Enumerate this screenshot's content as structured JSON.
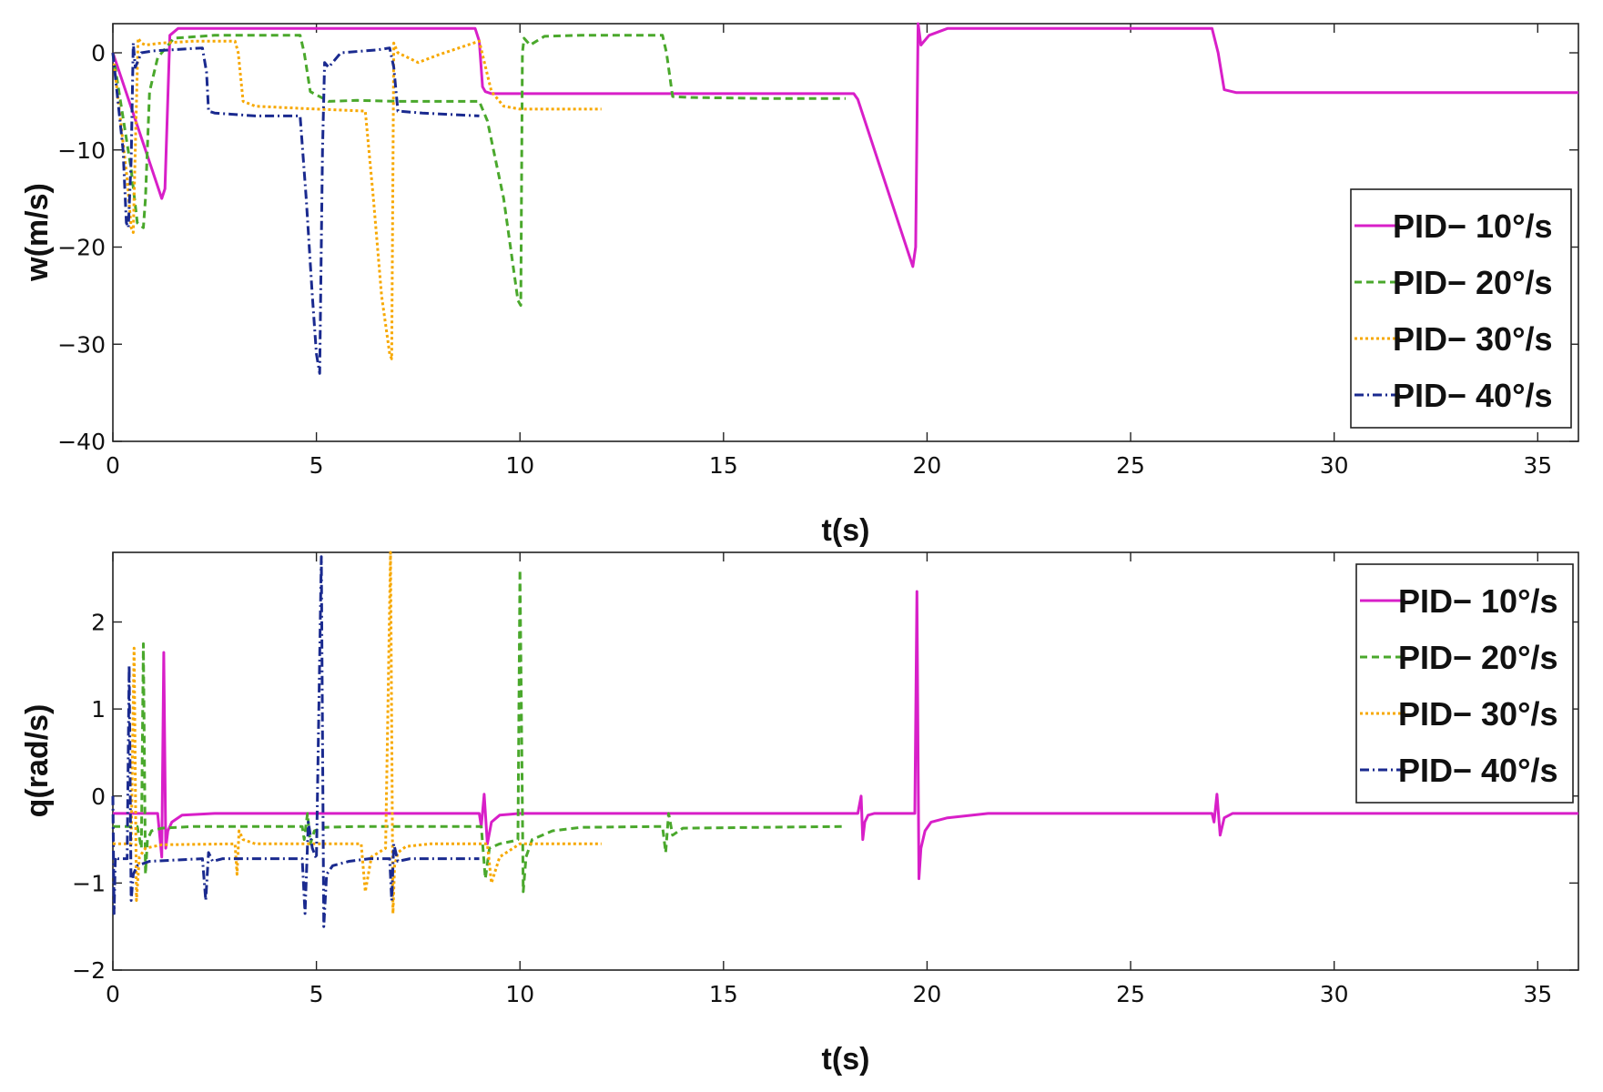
{
  "colors": {
    "pid10": "#d81fc8",
    "pid20": "#4aa82c",
    "pid30": "#f7a800",
    "pid40": "#1a2a8f"
  },
  "chart_data": [
    {
      "type": "line",
      "title": "",
      "xlabel": "t(s)",
      "ylabel": "w(m/s)",
      "xlim": [
        0,
        36
      ],
      "ylim": [
        -40,
        3
      ],
      "xticks": [
        0,
        5,
        10,
        15,
        20,
        25,
        30,
        35
      ],
      "xtick_labels": [
        "0",
        "5",
        "10",
        "15",
        "20",
        "25",
        "30",
        "35"
      ],
      "yticks": [
        0,
        -10,
        -20,
        -30,
        -40
      ],
      "ytick_labels": [
        "0",
        "−10",
        "−20",
        "−30",
        "−40"
      ],
      "legend_position": "right",
      "series": [
        {
          "name": "PID− 10°/s",
          "color_key": "pid10",
          "dash": "solid",
          "x": [
            0,
            1.2,
            1.28,
            1.4,
            1.6,
            2.5,
            8.9,
            9.0,
            9.08,
            9.15,
            9.3,
            10,
            18.2,
            18.3,
            19.65,
            19.72,
            19.78,
            19.85,
            20.05,
            20.5,
            27.0,
            27.15,
            27.3,
            27.6,
            36
          ],
          "y": [
            0,
            -15,
            -14,
            1.8,
            2.5,
            2.5,
            2.5,
            1.2,
            -3.5,
            -4,
            -4.2,
            -4.2,
            -4.2,
            -4.8,
            -22,
            -20,
            3,
            0.8,
            1.8,
            2.5,
            2.5,
            0,
            -3.8,
            -4.1,
            -4.1
          ]
        },
        {
          "name": "PID− 20°/s",
          "color_key": "pid20",
          "dash": "8 5",
          "x": [
            0,
            0.45,
            0.6,
            0.75,
            0.8,
            0.9,
            1.1,
            1.5,
            2.5,
            4.6,
            4.7,
            4.85,
            5.3,
            6,
            7,
            9,
            9.2,
            9.6,
            9.95,
            10.02,
            10.06,
            10.1,
            10.25,
            10.6,
            11.5,
            13.5,
            13.6,
            13.75,
            14.2,
            16,
            18
          ],
          "y": [
            0,
            -12,
            -17.5,
            -18,
            -15,
            -4,
            -0.5,
            1.5,
            1.8,
            1.8,
            0,
            -4,
            -5,
            -4.9,
            -5,
            -5,
            -7,
            -15,
            -25.5,
            -26,
            0,
            1.5,
            0.8,
            1.7,
            1.8,
            1.8,
            0,
            -4.5,
            -4.6,
            -4.7,
            -4.7
          ]
        },
        {
          "name": "PID− 30°/s",
          "color_key": "pid30",
          "dash": "3 3",
          "x": [
            0,
            0.35,
            0.45,
            0.5,
            0.55,
            0.62,
            0.7,
            0.8,
            1.2,
            2.0,
            3.0,
            3.08,
            3.2,
            3.5,
            5,
            6.2,
            6.4,
            6.6,
            6.8,
            6.85,
            6.9,
            7.0,
            7.5,
            8,
            9,
            9.3,
            9.6,
            10,
            12
          ],
          "y": [
            0,
            -13,
            -18,
            -18.5,
            -10,
            1.5,
            1.0,
            0.8,
            1.0,
            1.2,
            1.2,
            0,
            -5,
            -5.5,
            -5.8,
            -6,
            -15,
            -25,
            -31,
            -31.5,
            1,
            0,
            -1,
            -0.2,
            1.2,
            -4,
            -5.5,
            -5.8,
            -5.8
          ]
        },
        {
          "name": "PID− 40°/s",
          "color_key": "pid40",
          "dash": "10 4 2 4",
          "x": [
            0,
            0.25,
            0.33,
            0.38,
            0.45,
            0.5,
            0.55,
            0.7,
            1.0,
            2.2,
            2.3,
            2.35,
            2.5,
            3.5,
            4.6,
            4.75,
            4.9,
            5.0,
            5.08,
            5.15,
            5.2,
            5.3,
            5.6,
            6.5,
            6.8,
            6.9,
            7.0,
            7.6,
            9
          ],
          "y": [
            0,
            -10,
            -17.5,
            -18,
            -11,
            1.0,
            -1.5,
            0,
            0.2,
            0.5,
            -2,
            -6,
            -6.2,
            -6.5,
            -6.5,
            -15,
            -25,
            -31,
            -33,
            -10,
            -1,
            -1.5,
            0,
            0.3,
            0.5,
            -1.5,
            -6,
            -6.2,
            -6.5
          ]
        }
      ]
    },
    {
      "type": "line",
      "title": "",
      "xlabel": "t(s)",
      "ylabel": "q(rad/s)",
      "xlim": [
        0,
        36
      ],
      "ylim": [
        -2,
        2.8
      ],
      "xticks": [
        0,
        5,
        10,
        15,
        20,
        25,
        30,
        35
      ],
      "xtick_labels": [
        "0",
        "5",
        "10",
        "15",
        "20",
        "25",
        "30",
        "35"
      ],
      "yticks": [
        2,
        1,
        0,
        -1,
        -2
      ],
      "ytick_labels": [
        "2",
        "1",
        "0",
        "−1",
        "−2"
      ],
      "legend_position": "top-right",
      "series": [
        {
          "name": "PID− 10°/s",
          "color_key": "pid10",
          "dash": "solid",
          "x": [
            0,
            0.3,
            1.1,
            1.2,
            1.25,
            1.3,
            1.35,
            1.45,
            1.7,
            2.5,
            9.0,
            9.05,
            9.12,
            9.2,
            9.3,
            9.5,
            10,
            18.3,
            18.38,
            18.42,
            18.47,
            18.55,
            18.7,
            19.7,
            19.75,
            19.8,
            19.85,
            19.95,
            20.1,
            20.5,
            21.5,
            27.0,
            27.05,
            27.12,
            27.2,
            27.3,
            27.5,
            36
          ],
          "y": [
            -0.2,
            -0.2,
            -0.2,
            -0.7,
            1.65,
            -0.6,
            -0.4,
            -0.3,
            -0.22,
            -0.2,
            -0.2,
            -0.35,
            0.02,
            -0.55,
            -0.3,
            -0.22,
            -0.2,
            -0.2,
            0.0,
            -0.5,
            -0.3,
            -0.22,
            -0.2,
            -0.2,
            2.35,
            -0.95,
            -0.6,
            -0.4,
            -0.3,
            -0.25,
            -0.2,
            -0.2,
            -0.3,
            0.02,
            -0.45,
            -0.25,
            -0.2,
            -0.2
          ]
        },
        {
          "name": "PID− 20°/s",
          "color_key": "pid20",
          "dash": "8 5",
          "x": [
            0,
            0.2,
            0.6,
            0.7,
            0.75,
            0.8,
            0.85,
            0.95,
            1.2,
            2.0,
            4.65,
            4.7,
            4.78,
            4.85,
            4.95,
            5.2,
            6,
            9.05,
            9.15,
            9.25,
            9.5,
            9.8,
            9.95,
            10.0,
            10.08,
            10.15,
            10.3,
            10.8,
            11.5,
            13.5,
            13.58,
            13.65,
            13.75,
            14.0,
            18
          ],
          "y": [
            -0.35,
            -0.35,
            -0.35,
            -0.6,
            1.75,
            -0.9,
            -0.5,
            -0.4,
            -0.37,
            -0.35,
            -0.35,
            -0.5,
            -0.2,
            -0.55,
            -0.4,
            -0.36,
            -0.35,
            -0.35,
            -0.95,
            -0.6,
            -0.55,
            -0.52,
            -0.5,
            2.6,
            -1.1,
            -0.7,
            -0.5,
            -0.4,
            -0.36,
            -0.35,
            -0.65,
            -0.2,
            -0.45,
            -0.37,
            -0.35
          ]
        },
        {
          "name": "PID− 30°/s",
          "color_key": "pid30",
          "dash": "3 3",
          "x": [
            0,
            0.2,
            0.45,
            0.52,
            0.58,
            0.65,
            0.8,
            1.2,
            3.0,
            3.05,
            3.1,
            3.2,
            3.5,
            5,
            6.1,
            6.2,
            6.35,
            6.7,
            6.82,
            6.88,
            6.92,
            7.0,
            7.2,
            7.8,
            9.2,
            9.3,
            9.5,
            10,
            12
          ],
          "y": [
            -0.55,
            -0.55,
            -0.55,
            1.7,
            -1.2,
            -0.7,
            -0.6,
            -0.56,
            -0.55,
            -0.9,
            -0.4,
            -0.5,
            -0.55,
            -0.55,
            -0.55,
            -1.1,
            -0.7,
            -0.6,
            2.8,
            -1.35,
            -0.8,
            -0.65,
            -0.58,
            -0.55,
            -0.55,
            -1.0,
            -0.7,
            -0.55,
            -0.55
          ]
        },
        {
          "name": "PID− 40°/s",
          "color_key": "pid40",
          "dash": "10 4 2 4",
          "x": [
            0,
            0.03,
            0.06,
            0.12,
            0.35,
            0.4,
            0.45,
            0.5,
            0.6,
            0.9,
            2.2,
            2.28,
            2.35,
            2.45,
            2.7,
            4.65,
            4.72,
            4.8,
            4.9,
            5.0,
            5.12,
            5.18,
            5.25,
            5.4,
            5.8,
            6.3,
            6.8,
            6.85,
            6.9,
            7.0,
            7.3,
            9
          ],
          "y": [
            0,
            -1.35,
            -0.7,
            -0.72,
            -0.72,
            1.5,
            -1.2,
            -0.9,
            -0.8,
            -0.75,
            -0.72,
            -1.2,
            -0.65,
            -0.75,
            -0.72,
            -0.72,
            -1.35,
            -0.3,
            -0.6,
            -0.72,
            2.75,
            -1.5,
            -0.9,
            -0.8,
            -0.75,
            -0.72,
            -0.72,
            -1.2,
            -0.55,
            -0.75,
            -0.72,
            -0.72
          ]
        }
      ]
    }
  ]
}
